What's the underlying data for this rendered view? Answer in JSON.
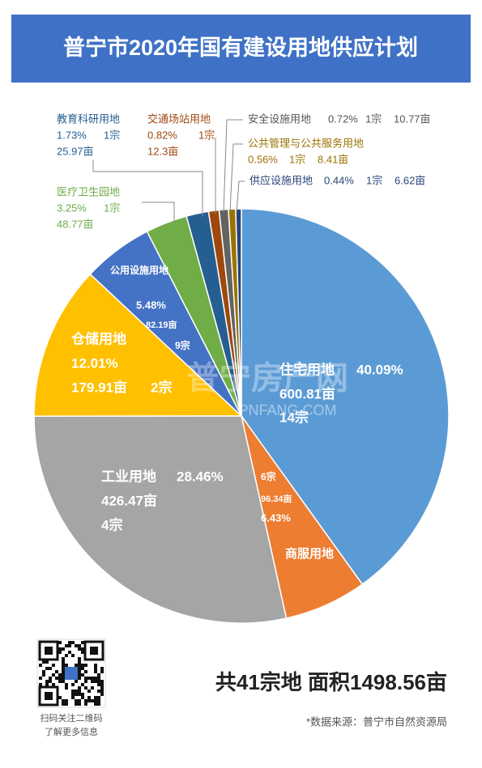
{
  "chart_data": {
    "type": "pie",
    "title": "普宁市2020年国有建设用地供应计划",
    "categories": [
      "住宅用地",
      "商服用地",
      "工业用地",
      "仓储用地",
      "公用设施用地",
      "医疗卫生园地",
      "教育科研用地",
      "交通场站用地",
      "安全设施用地",
      "公共管理与公共服务用地",
      "供应设施用地"
    ],
    "values": [
      40.09,
      6.43,
      28.46,
      12.01,
      5.48,
      3.25,
      1.73,
      0.82,
      0.72,
      0.56,
      0.44
    ],
    "value_labels": [
      "40.09%",
      "6.43%",
      "28.46%",
      "12.01%",
      "5.48%",
      "3.25%",
      "1.73%",
      "0.82%",
      "0.72%",
      "0.56%",
      "0.44%"
    ],
    "area_labels": [
      "600.81亩",
      "96.34亩",
      "426.47亩",
      "179.91亩",
      "82.19亩",
      "48.77亩",
      "25.97亩",
      "12.3亩",
      "10.77亩",
      "8.41亩",
      "6.62亩"
    ],
    "count_labels": [
      "14宗",
      "6宗",
      "4宗",
      "2宗",
      "9宗",
      "1宗",
      "1宗",
      "1宗",
      "1宗",
      "1宗",
      "1宗"
    ],
    "colors": [
      "#5b9bd5",
      "#ed7d31",
      "#a5a5a5",
      "#ffc000",
      "#4472c4",
      "#70ad47",
      "#255e91",
      "#9e480e",
      "#636363",
      "#997300",
      "#264478"
    ],
    "summary": "共41宗地  面积1498.56亩",
    "source": "*数据来源：普宁市自然资源局",
    "qr_caption": [
      "扫码关注二维码",
      "了解更多信息"
    ],
    "watermark": [
      "普宁房产网",
      "PNFANG.COM"
    ]
  }
}
